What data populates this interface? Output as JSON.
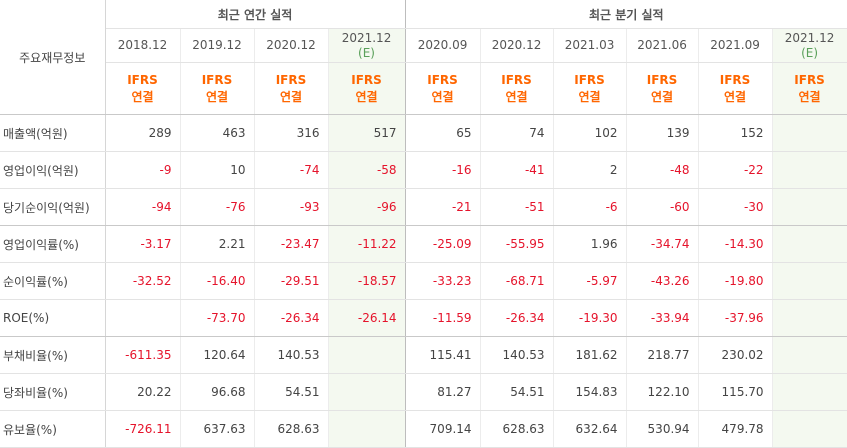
{
  "header": {
    "row_label": "주요재무정보",
    "annual_group": "최근 연간 실적",
    "quarterly_group": "최근 분기 실적",
    "periods": [
      {
        "line1": "2018.12",
        "line2": ""
      },
      {
        "line1": "2019.12",
        "line2": ""
      },
      {
        "line1": "2020.12",
        "line2": ""
      },
      {
        "line1": "2021.12",
        "line2": "(E)"
      },
      {
        "line1": "2020.09",
        "line2": ""
      },
      {
        "line1": "2020.12",
        "line2": ""
      },
      {
        "line1": "2021.03",
        "line2": ""
      },
      {
        "line1": "2021.06",
        "line2": ""
      },
      {
        "line1": "2021.09",
        "line2": ""
      },
      {
        "line1": "2021.12",
        "line2": "(E)"
      }
    ],
    "ifrs_top": "IFRS",
    "ifrs_bottom": "연결"
  },
  "rows": [
    {
      "label": "매출액(억원)",
      "values": [
        "289",
        "463",
        "316",
        "517",
        "65",
        "74",
        "102",
        "139",
        "152",
        ""
      ]
    },
    {
      "label": "영업이익(억원)",
      "values": [
        "-9",
        "10",
        "-74",
        "-58",
        "-16",
        "-41",
        "2",
        "-48",
        "-22",
        ""
      ]
    },
    {
      "label": "당기순이익(억원)",
      "values": [
        "-94",
        "-76",
        "-93",
        "-96",
        "-21",
        "-51",
        "-6",
        "-60",
        "-30",
        ""
      ]
    },
    {
      "label": "영업이익률(%)",
      "values": [
        "-3.17",
        "2.21",
        "-23.47",
        "-11.22",
        "-25.09",
        "-55.95",
        "1.96",
        "-34.74",
        "-14.30",
        ""
      ]
    },
    {
      "label": "순이익률(%)",
      "values": [
        "-32.52",
        "-16.40",
        "-29.51",
        "-18.57",
        "-33.23",
        "-68.71",
        "-5.97",
        "-43.26",
        "-19.80",
        ""
      ]
    },
    {
      "label": "ROE(%)",
      "values": [
        "",
        "-73.70",
        "-26.34",
        "-26.14",
        "-11.59",
        "-26.34",
        "-19.30",
        "-33.94",
        "-37.96",
        ""
      ]
    },
    {
      "label": "부채비율(%)",
      "values": [
        "-611.35",
        "120.64",
        "140.53",
        "",
        "115.41",
        "140.53",
        "181.62",
        "218.77",
        "230.02",
        ""
      ]
    },
    {
      "label": "당좌비율(%)",
      "values": [
        "20.22",
        "96.68",
        "54.51",
        "",
        "81.27",
        "54.51",
        "154.83",
        "122.10",
        "115.70",
        ""
      ]
    },
    {
      "label": "유보율(%)",
      "values": [
        "-726.11",
        "637.63",
        "628.63",
        "",
        "709.14",
        "628.63",
        "632.64",
        "530.94",
        "479.78",
        ""
      ]
    }
  ]
}
